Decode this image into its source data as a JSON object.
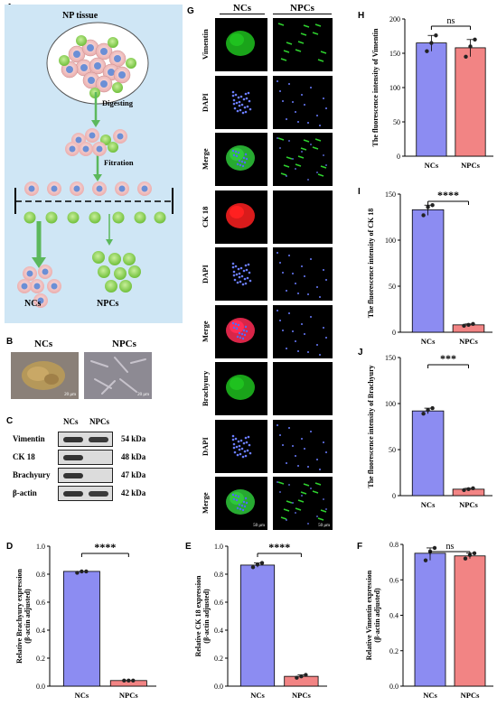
{
  "panel_labels": {
    "a": "A",
    "b": "B",
    "c": "C",
    "d": "D",
    "e": "E",
    "f": "F",
    "g": "G",
    "h": "H",
    "i": "I",
    "j": "J"
  },
  "schematic": {
    "title": "NP tissue",
    "step1": "Digesting",
    "step2": "Fitration",
    "left_group": "NCs",
    "right_group": "NPCs"
  },
  "morphology": {
    "left": "NCs",
    "right": "NPCs",
    "scale_left": "20 μm",
    "scale_right": "20 μm"
  },
  "western": {
    "headers": [
      "NCs",
      "NPCs"
    ],
    "rows": [
      {
        "protein": "Vimentin",
        "kda": "54 kDa"
      },
      {
        "protein": "CK 18",
        "kda": "48 kDa"
      },
      {
        "protein": "Brachyury",
        "kda": "47 kDa"
      },
      {
        "protein": "β-actin",
        "kda": "42 kDa"
      }
    ]
  },
  "if_grid": {
    "col_headers": [
      "NCs",
      "NPCs"
    ],
    "rows": [
      "Vimentin",
      "DAPI",
      "Merge",
      "CK 18",
      "DAPI",
      "Merge",
      "Brachyury",
      "DAPI",
      "Merge"
    ],
    "scale": "50 μm"
  },
  "colors": {
    "ncs": "#8c8cf2",
    "npcs": "#f28484",
    "ncs_edge": "#3b3bd6",
    "npcs_edge": "#c0392b"
  },
  "chart_data": [
    {
      "id": "D",
      "type": "bar",
      "categories": [
        "NCs",
        "NPCs"
      ],
      "values": [
        0.82,
        0.04
      ],
      "points": [
        [
          0.81,
          0.82,
          0.82
        ],
        [
          0.04,
          0.04,
          0.04
        ]
      ],
      "ylabel": "Relative Brachyury expression (β-actin adjusted)",
      "ylim": [
        0,
        1.0
      ],
      "yticks": [
        "0.0",
        "0.2",
        "0.4",
        "0.6",
        "0.8",
        "1.0"
      ],
      "significance": "****"
    },
    {
      "id": "E",
      "type": "bar",
      "categories": [
        "NCs",
        "NPCs"
      ],
      "values": [
        0.865,
        0.07
      ],
      "points": [
        [
          0.85,
          0.87,
          0.88
        ],
        [
          0.06,
          0.07,
          0.08
        ]
      ],
      "ylabel": "Relative CK 18 expression (β-actin adjusted)",
      "ylim": [
        0,
        1.0
      ],
      "yticks": [
        "0.0",
        "0.2",
        "0.4",
        "0.6",
        "0.8",
        "1.0"
      ],
      "significance": "****"
    },
    {
      "id": "F",
      "type": "bar",
      "categories": [
        "NCs",
        "NPCs"
      ],
      "values": [
        0.75,
        0.735
      ],
      "points": [
        [
          0.71,
          0.76,
          0.78
        ],
        [
          0.72,
          0.74,
          0.75
        ]
      ],
      "ylabel": "Relative Vimentin expression (β-actin adjusted)",
      "ylim": [
        0,
        0.8
      ],
      "yticks": [
        "0.0",
        "0.2",
        "0.4",
        "0.6",
        "0.8"
      ],
      "significance": "ns"
    },
    {
      "id": "H",
      "type": "bar",
      "categories": [
        "NCs",
        "NPCs"
      ],
      "values": [
        165,
        158
      ],
      "points": [
        [
          153,
          165,
          176
        ],
        [
          145,
          160,
          170
        ]
      ],
      "ylabel": "The fluorescence intensity of Vimentin",
      "ylim": [
        0,
        200
      ],
      "yticks": [
        "0",
        "50",
        "100",
        "150",
        "200"
      ],
      "significance": "ns"
    },
    {
      "id": "I",
      "type": "bar",
      "categories": [
        "NCs",
        "NPCs"
      ],
      "values": [
        133,
        8
      ],
      "points": [
        [
          127,
          136,
          138
        ],
        [
          7,
          8,
          9
        ]
      ],
      "ylabel": "The fluorescence intensity of CK 18",
      "ylim": [
        0,
        150
      ],
      "yticks": [
        "0",
        "50",
        "100",
        "150"
      ],
      "significance": "****"
    },
    {
      "id": "J",
      "type": "bar",
      "categories": [
        "NCs",
        "NPCs"
      ],
      "values": [
        92,
        7
      ],
      "points": [
        [
          89,
          93,
          95
        ],
        [
          6,
          7,
          8
        ]
      ],
      "ylabel": "The fluorescence intensity of Brachyury",
      "ylim": [
        0,
        150
      ],
      "yticks": [
        "0",
        "50",
        "100",
        "150"
      ],
      "significance": "***"
    }
  ]
}
